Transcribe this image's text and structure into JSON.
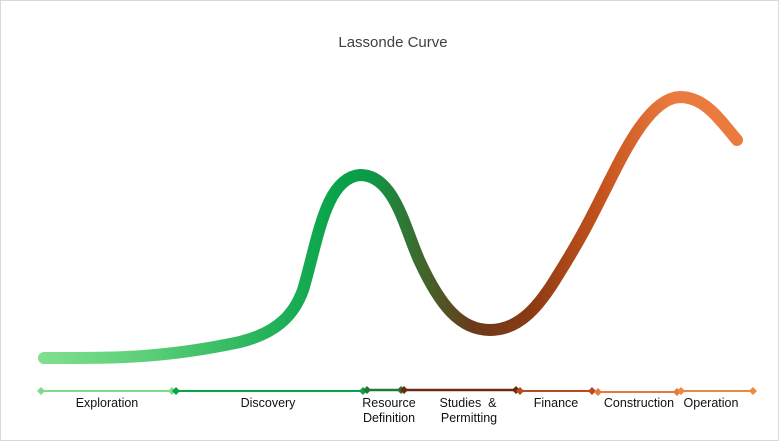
{
  "diagram": {
    "title": "Lassonde Curve",
    "curve_gradient": {
      "stops": [
        "#7fe08f",
        "#22b25a",
        "#0aa34a",
        "#0b9a47",
        "#3d6a2e",
        "#6b3a1a",
        "#8b3a14",
        "#c4521d",
        "#ea7a3e"
      ]
    },
    "stages": [
      {
        "name": "exploration",
        "lines": [
          "Exploration"
        ],
        "color": "#7fdc8c"
      },
      {
        "name": "discovery",
        "lines": [
          "Discovery"
        ],
        "color": "#0aa34a"
      },
      {
        "name": "resource-definition",
        "lines": [
          "Resource",
          "Definition"
        ],
        "color": "#1f7a34"
      },
      {
        "name": "studies-permitting",
        "lines": [
          "Studies  &",
          "Permitting"
        ],
        "color": "#6b2a10"
      },
      {
        "name": "finance",
        "lines": [
          "Finance"
        ],
        "color": "#b94a1d"
      },
      {
        "name": "construction",
        "lines": [
          "Construction"
        ],
        "color": "#e47a3d"
      },
      {
        "name": "operation",
        "lines": [
          "Operation"
        ],
        "color": "#ea8a3e"
      }
    ]
  }
}
